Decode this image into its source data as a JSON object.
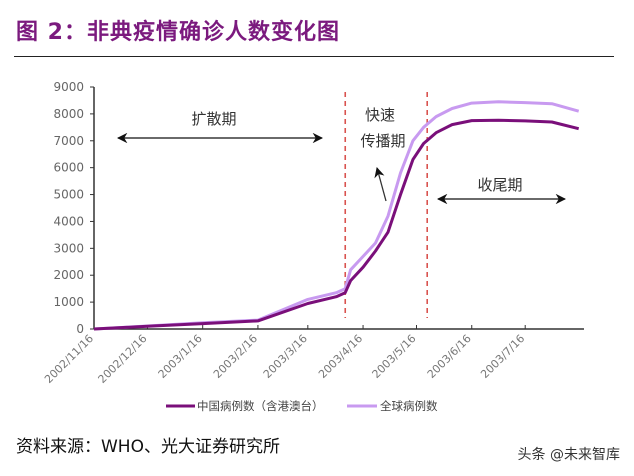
{
  "header": {
    "title": "图 2：非典疫情确诊人数变化图"
  },
  "footer": {
    "source": "资料来源：WHO、光大证券研究所",
    "watermark": "头条 @未来智库"
  },
  "annotations": {
    "spread": "扩散期",
    "rapid_line1": "快速",
    "rapid_line2": "传播期",
    "tail": "收尾期"
  },
  "chart_data": {
    "type": "line",
    "title": "",
    "xlabel": "",
    "ylabel": "",
    "ylim": [
      0,
      9000
    ],
    "yticks": [
      0,
      1000,
      2000,
      3000,
      4000,
      5000,
      6000,
      7000,
      8000,
      9000
    ],
    "xticks": [
      "2002/11/16",
      "2002/12/16",
      "2003/1/16",
      "2003/2/16",
      "2003/3/16",
      "2003/4/16",
      "2003/5/16",
      "2003/6/16",
      "2003/7/16"
    ],
    "xlim": [
      "2002-11-16",
      "2003-08-18"
    ],
    "grid": false,
    "legend": "bottom",
    "phase_dividers": [
      "2003-04-06",
      "2003-05-22"
    ],
    "x": [
      "2002-11-16",
      "2002-12-16",
      "2003-01-16",
      "2003-02-16",
      "2003-03-16",
      "2003-04-01",
      "2003-04-06",
      "2003-04-09",
      "2003-04-16",
      "2003-04-23",
      "2003-04-30",
      "2003-05-07",
      "2003-05-14",
      "2003-05-20",
      "2003-05-27",
      "2003-06-05",
      "2003-06-16",
      "2003-07-01",
      "2003-07-16",
      "2003-07-31",
      "2003-08-15"
    ],
    "series": [
      {
        "name": "中国病例数（含港澳台）",
        "color": "#7a0f7a",
        "values": [
          0,
          100,
          200,
          300,
          950,
          1200,
          1350,
          1800,
          2300,
          2900,
          3600,
          5000,
          6300,
          6900,
          7300,
          7600,
          7750,
          7760,
          7740,
          7700,
          7450
        ]
      },
      {
        "name": "全球病例数",
        "color": "#c89af0",
        "values": [
          0,
          110,
          230,
          330,
          1100,
          1350,
          1500,
          2200,
          2700,
          3200,
          4200,
          5800,
          7000,
          7500,
          7900,
          8200,
          8400,
          8450,
          8420,
          8380,
          8100
        ]
      }
    ]
  }
}
